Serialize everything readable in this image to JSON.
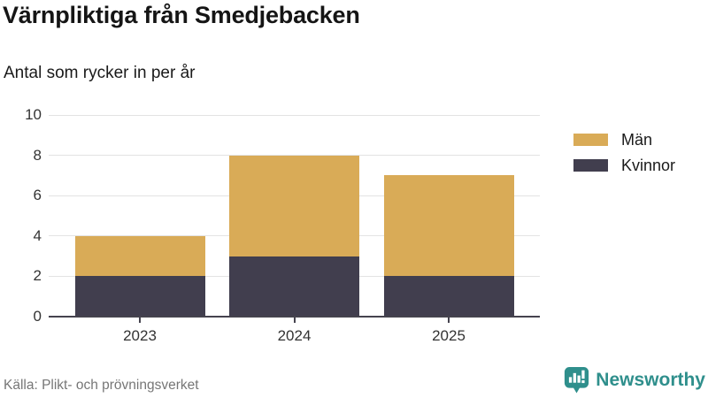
{
  "chart_data": {
    "type": "bar",
    "stacked": true,
    "title": "Värnpliktiga från Smedjebacken",
    "subtitle": "Antal som rycker in per år",
    "categories": [
      "2023",
      "2024",
      "2025"
    ],
    "series": [
      {
        "name": "Män",
        "color": "#d9ab57",
        "values": [
          2,
          5,
          5
        ]
      },
      {
        "name": "Kvinnor",
        "color": "#413e4e",
        "values": [
          2,
          3,
          2
        ]
      }
    ],
    "totals": [
      4,
      8,
      7
    ],
    "ylim": [
      0,
      10
    ],
    "yticks": [
      0,
      2,
      4,
      6,
      8,
      10
    ],
    "grid": true,
    "legend_position": "top-right"
  },
  "footer": {
    "source": "Källa: Plikt- och prövningsverket",
    "brand": "Newsworthy"
  },
  "colors": {
    "men": "#d9ab57",
    "women": "#413e4e",
    "axis": "#45434e",
    "gridline": "#e3e3e3",
    "tick_label": "#333333",
    "source_text": "#767676",
    "brand_teal": "#2f8f8c"
  }
}
